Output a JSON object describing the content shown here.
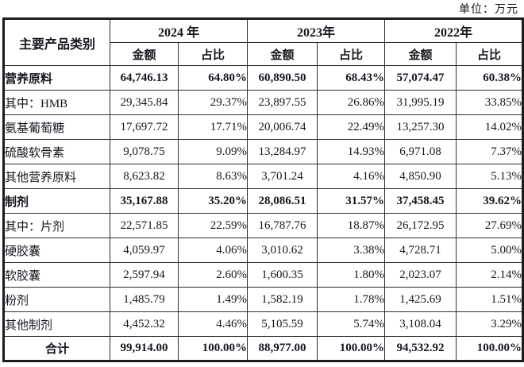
{
  "page": {
    "unit_label": "单位：万元"
  },
  "table": {
    "category_header": "主要产品类别",
    "year_groups": [
      {
        "year": "2024 年"
      },
      {
        "year": "2023年"
      },
      {
        "year": "2022年"
      }
    ],
    "sub_headers": [
      "金额",
      "占比"
    ],
    "rows": [
      {
        "label": "营养原料",
        "bold": true,
        "values": [
          "64,746.13",
          "64.80%",
          "60,890.50",
          "68.43%",
          "57,074.47",
          "60.38%"
        ]
      },
      {
        "label": "其中：HMB",
        "bold": false,
        "values": [
          "29,345.84",
          "29.37%",
          "23,897.55",
          "26.86%",
          "31,995.19",
          "33.85%"
        ]
      },
      {
        "label": "氨基葡萄糖",
        "bold": false,
        "values": [
          "17,697.72",
          "17.71%",
          "20,006.74",
          "22.49%",
          "13,257.30",
          "14.02%"
        ]
      },
      {
        "label": "硫酸软骨素",
        "bold": false,
        "values": [
          "9,078.75",
          "9.09%",
          "13,284.97",
          "14.93%",
          "6,971.08",
          "7.37%"
        ]
      },
      {
        "label": "其他营养原料",
        "bold": false,
        "values": [
          "8,623.82",
          "8.63%",
          "3,701.24",
          "4.16%",
          "4,850.90",
          "5.13%"
        ]
      },
      {
        "label": "制剂",
        "bold": true,
        "values": [
          "35,167.88",
          "35.20%",
          "28,086.51",
          "31.57%",
          "37,458.45",
          "39.62%"
        ]
      },
      {
        "label": "其中：片剂",
        "bold": false,
        "values": [
          "22,571.85",
          "22.59%",
          "16,787.76",
          "18.87%",
          "26,172.95",
          "27.69%"
        ]
      },
      {
        "label": "硬胶囊",
        "bold": false,
        "values": [
          "4,059.97",
          "4.06%",
          "3,010.62",
          "3.38%",
          "4,728.71",
          "5.00%"
        ]
      },
      {
        "label": "软胶囊",
        "bold": false,
        "values": [
          "2,597.94",
          "2.60%",
          "1,600.35",
          "1.80%",
          "2,023.07",
          "2.14%"
        ]
      },
      {
        "label": "粉剂",
        "bold": false,
        "values": [
          "1,485.79",
          "1.49%",
          "1,582.19",
          "1.78%",
          "1,425.69",
          "1.51%"
        ]
      },
      {
        "label": "其他制剂",
        "bold": false,
        "values": [
          "4,452.32",
          "4.46%",
          "5,105.59",
          "5.74%",
          "3,108.04",
          "3.29%"
        ]
      },
      {
        "label": "合计",
        "bold": true,
        "values": [
          "99,914.00",
          "100.00%",
          "88,977.00",
          "100.00%",
          "94,532.92",
          "100.00%"
        ]
      }
    ],
    "colors": {
      "text": "#16161f",
      "border_outer": "#1b1b1b",
      "border_inner": "#2e2e2e",
      "background": "#ffffff"
    }
  }
}
